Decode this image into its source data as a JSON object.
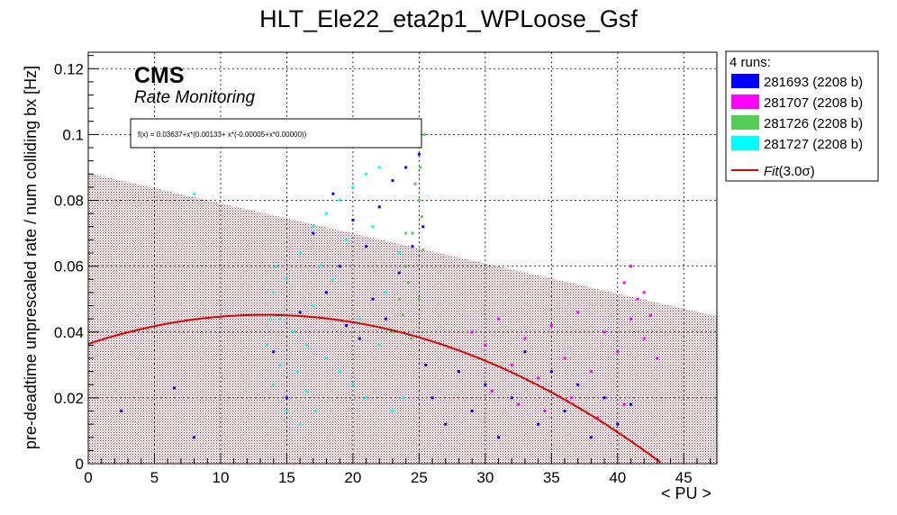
{
  "chart_data": {
    "type": "scatter",
    "title": "HLT_Ele22_eta2p1_WPLoose_Gsf",
    "xlabel": "< PU >",
    "ylabel": "pre-deadtime unprescaled rate / num colliding bx [Hz]",
    "xlim": [
      0,
      47.5
    ],
    "ylim": [
      0,
      0.125
    ],
    "xticks": [
      "0",
      "5",
      "10",
      "15",
      "20",
      "25",
      "30",
      "35",
      "40",
      "45"
    ],
    "yticks": [
      "0",
      "0.02",
      "0.04",
      "0.06",
      "0.08",
      "0.1",
      "0.12"
    ],
    "grid": true,
    "cms_label": "CMS",
    "cms_sublabel": "Rate Monitoring",
    "formula": "f(x) = 0.03637+x*(0.00133+ x*(-0.00005+x*0.00000))",
    "fit": {
      "a0": 0.03637,
      "a1": 0.00133,
      "a2": -5e-05,
      "color": "#dd0000"
    },
    "band": {
      "x": [
        0,
        47.5
      ],
      "upper": [
        0.0883,
        0.0448
      ],
      "color": "#8b2a3a"
    },
    "legend": {
      "header": "4 runs:",
      "placement": "right",
      "entries": [
        {
          "label": "281693 (2208 b)",
          "color": "#0000ff"
        },
        {
          "label": "281707 (2208 b)",
          "color": "#ff00ff"
        },
        {
          "label": "281726 (2208 b)",
          "color": "#55cc55"
        },
        {
          "label": "281727 (2208 b)",
          "color": "#00ffff"
        }
      ],
      "fit_label": "Fit",
      "fit_suffix": "(3.0σ)"
    },
    "series": [
      {
        "name": "281693 (2208 b)",
        "color": "#0000ff",
        "points": [
          [
            2.5,
            0.016
          ],
          [
            6.5,
            0.023
          ],
          [
            8,
            0.008
          ],
          [
            14,
            0.034
          ],
          [
            15,
            0.02
          ],
          [
            16,
            0.046
          ],
          [
            17,
            0.07
          ],
          [
            18,
            0.052
          ],
          [
            18.5,
            0.082
          ],
          [
            19,
            0.06
          ],
          [
            19.5,
            0.042
          ],
          [
            20,
            0.074
          ],
          [
            20.5,
            0.038
          ],
          [
            21,
            0.066
          ],
          [
            21.5,
            0.05
          ],
          [
            22,
            0.078
          ],
          [
            22.5,
            0.044
          ],
          [
            23,
            0.086
          ],
          [
            23.5,
            0.058
          ],
          [
            24,
            0.09
          ],
          [
            24.5,
            0.066
          ],
          [
            25,
            0.094
          ],
          [
            25.3,
            0.072
          ],
          [
            25.5,
            0.03
          ],
          [
            26,
            0.02
          ],
          [
            27,
            0.012
          ],
          [
            28,
            0.028
          ],
          [
            29,
            0.016
          ],
          [
            30,
            0.024
          ],
          [
            31,
            0.008
          ],
          [
            32,
            0.02
          ],
          [
            33,
            0.034
          ],
          [
            34,
            0.012
          ],
          [
            35,
            0.028
          ],
          [
            36,
            0.016
          ],
          [
            37,
            0.024
          ],
          [
            38,
            0.008
          ],
          [
            39,
            0.02
          ],
          [
            40,
            0.012
          ],
          [
            41,
            0.018
          ]
        ]
      },
      {
        "name": "281707 (2208 b)",
        "color": "#ff00ff",
        "points": [
          [
            29,
            0.04
          ],
          [
            30,
            0.036
          ],
          [
            31,
            0.044
          ],
          [
            32,
            0.03
          ],
          [
            33,
            0.038
          ],
          [
            34,
            0.026
          ],
          [
            35,
            0.042
          ],
          [
            36,
            0.032
          ],
          [
            37,
            0.046
          ],
          [
            38,
            0.028
          ],
          [
            39,
            0.04
          ],
          [
            40,
            0.034
          ],
          [
            40.5,
            0.055
          ],
          [
            41,
            0.044
          ],
          [
            41.5,
            0.05
          ],
          [
            42,
            0.038
          ],
          [
            42.5,
            0.045
          ],
          [
            43,
            0.032
          ],
          [
            30.5,
            0.022
          ],
          [
            32.5,
            0.018
          ],
          [
            34.5,
            0.016
          ],
          [
            36.5,
            0.02
          ],
          [
            38.5,
            0.014
          ],
          [
            40.5,
            0.018
          ],
          [
            42,
            0.052
          ],
          [
            41,
            0.06
          ]
        ]
      },
      {
        "name": "281726 (2208 b)",
        "color": "#55cc55",
        "points": [
          [
            23,
            0.04
          ],
          [
            23.5,
            0.05
          ],
          [
            24,
            0.06
          ],
          [
            24.5,
            0.07
          ],
          [
            25,
            0.08
          ],
          [
            25.3,
            0.065
          ],
          [
            24.2,
            0.055
          ],
          [
            23.8,
            0.045
          ],
          [
            25.1,
            0.09
          ],
          [
            25.2,
            0.075
          ],
          [
            24.7,
            0.085
          ],
          [
            24.4,
            0.038
          ],
          [
            25.4,
            0.1
          ],
          [
            25,
            0.05
          ],
          [
            24,
            0.07
          ]
        ]
      },
      {
        "name": "281727 (2208 b)",
        "color": "#00ffff",
        "points": [
          [
            14,
            0.052
          ],
          [
            14.5,
            0.044
          ],
          [
            15,
            0.056
          ],
          [
            15.5,
            0.04
          ],
          [
            16,
            0.064
          ],
          [
            16.5,
            0.036
          ],
          [
            17,
            0.048
          ],
          [
            17.5,
            0.06
          ],
          [
            18,
            0.032
          ],
          [
            18.5,
            0.056
          ],
          [
            19,
            0.028
          ],
          [
            19.5,
            0.068
          ],
          [
            20,
            0.024
          ],
          [
            20.5,
            0.044
          ],
          [
            21,
            0.02
          ],
          [
            21.5,
            0.072
          ],
          [
            22,
            0.036
          ],
          [
            22.5,
            0.052
          ],
          [
            23,
            0.016
          ],
          [
            23.5,
            0.064
          ],
          [
            13.5,
            0.036
          ],
          [
            14,
            0.024
          ],
          [
            15,
            0.016
          ],
          [
            16,
            0.012
          ],
          [
            17,
            0.072
          ],
          [
            18,
            0.076
          ],
          [
            19,
            0.08
          ],
          [
            20,
            0.084
          ],
          [
            21,
            0.088
          ],
          [
            22,
            0.09
          ],
          [
            15.8,
            0.028
          ],
          [
            14.5,
            0.03
          ],
          [
            13.8,
            0.044
          ],
          [
            16.5,
            0.022
          ],
          [
            14.2,
            0.06
          ],
          [
            8,
            0.082
          ],
          [
            17.2,
            0.016
          ],
          [
            23.8,
            0.02
          ]
        ]
      }
    ]
  }
}
